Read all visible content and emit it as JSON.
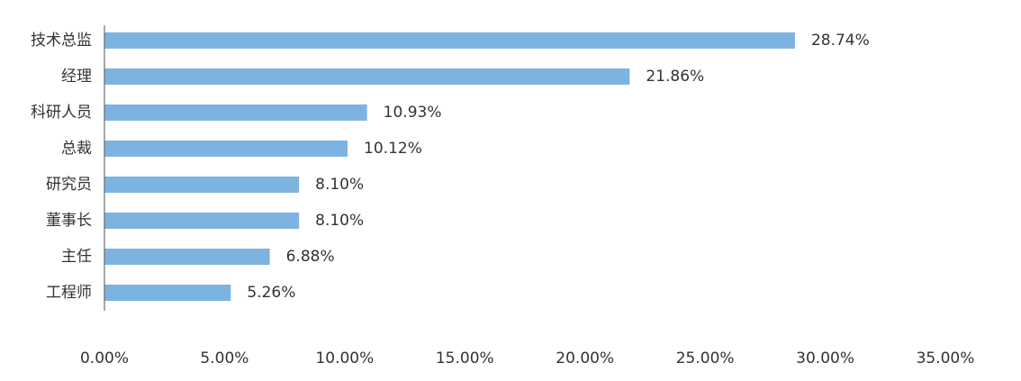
{
  "chart_data": {
    "type": "hbar",
    "categories": [
      "技术总监",
      "经理",
      "科研人员",
      "总裁",
      "研究员",
      "董事长",
      "主任",
      "工程师"
    ],
    "values": [
      28.74,
      21.86,
      10.93,
      10.12,
      8.1,
      8.1,
      6.88,
      5.26
    ],
    "value_labels": [
      "28.74%",
      "21.86%",
      "10.93%",
      "10.12%",
      "8.10%",
      "8.10%",
      "6.88%",
      "5.26%"
    ],
    "color": "#7db3e0",
    "xlim": [
      0,
      35
    ],
    "xticks": [
      {
        "value": 0,
        "label": "0.00%"
      },
      {
        "value": 5,
        "label": "5.00%"
      },
      {
        "value": 10,
        "label": "10.00%"
      },
      {
        "value": 15,
        "label": "15.00%"
      },
      {
        "value": 20,
        "label": "20.00%"
      },
      {
        "value": 25,
        "label": "25.00%"
      },
      {
        "value": 30,
        "label": "30.00%"
      },
      {
        "value": 35,
        "label": "35.00%"
      }
    ],
    "grid": false
  }
}
